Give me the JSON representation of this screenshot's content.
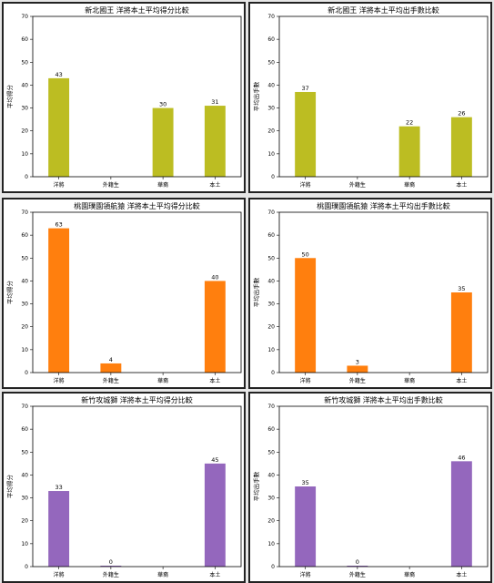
{
  "chart_data": [
    {
      "type": "bar",
      "title": "新北國王 洋將本土平均得分比較",
      "ylabel": "平均得分",
      "categories": [
        "洋將",
        "外籍生",
        "華裔",
        "本土"
      ],
      "values": [
        43,
        null,
        30,
        31
      ],
      "labels": [
        "43",
        "",
        "30",
        "31"
      ],
      "ylim": [
        0,
        70
      ],
      "yticks": [
        0,
        10,
        20,
        30,
        40,
        50,
        60,
        70
      ],
      "color": "#bcbd22"
    },
    {
      "type": "bar",
      "title": "新北國王 洋將本土平均出手數比較",
      "ylabel": "平均出手數",
      "categories": [
        "洋將",
        "外籍生",
        "華裔",
        "本土"
      ],
      "values": [
        37,
        null,
        22,
        26
      ],
      "labels": [
        "37",
        "",
        "22",
        "26"
      ],
      "ylim": [
        0,
        70
      ],
      "yticks": [
        0,
        10,
        20,
        30,
        40,
        50,
        60,
        70
      ],
      "color": "#bcbd22"
    },
    {
      "type": "bar",
      "title": "桃園璞園領航猿 洋將本土平均得分比較",
      "ylabel": "平均得分",
      "categories": [
        "洋將",
        "外籍生",
        "華裔",
        "本土"
      ],
      "values": [
        63,
        4,
        null,
        40
      ],
      "labels": [
        "63",
        "4",
        "",
        "40"
      ],
      "ylim": [
        0,
        70
      ],
      "yticks": [
        0,
        10,
        20,
        30,
        40,
        50,
        60,
        70
      ],
      "color": "#ff7f0e"
    },
    {
      "type": "bar",
      "title": "桃園璞園領航猿 洋將本土平均出手數比較",
      "ylabel": "平均出手數",
      "categories": [
        "洋將",
        "外籍生",
        "華裔",
        "本土"
      ],
      "values": [
        50,
        3,
        null,
        35
      ],
      "labels": [
        "50",
        "3",
        "",
        "35"
      ],
      "ylim": [
        0,
        70
      ],
      "yticks": [
        0,
        10,
        20,
        30,
        40,
        50,
        60,
        70
      ],
      "color": "#ff7f0e"
    },
    {
      "type": "bar",
      "title": "新竹攻城獅 洋將本土平均得分比較",
      "ylabel": "平均得分",
      "categories": [
        "洋將",
        "外籍生",
        "華裔",
        "本土"
      ],
      "values": [
        33,
        0.4,
        null,
        45
      ],
      "labels": [
        "33",
        "0",
        "",
        "45"
      ],
      "ylim": [
        0,
        70
      ],
      "yticks": [
        0,
        10,
        20,
        30,
        40,
        50,
        60,
        70
      ],
      "color": "#9467bd"
    },
    {
      "type": "bar",
      "title": "新竹攻城獅 洋將本土平均出手數比較",
      "ylabel": "平均出手數",
      "categories": [
        "洋將",
        "外籍生",
        "華裔",
        "本土"
      ],
      "values": [
        35,
        0.4,
        null,
        46
      ],
      "labels": [
        "35",
        "0",
        "",
        "46"
      ],
      "ylim": [
        0,
        70
      ],
      "yticks": [
        0,
        10,
        20,
        30,
        40,
        50,
        60,
        70
      ],
      "color": "#9467bd"
    }
  ]
}
